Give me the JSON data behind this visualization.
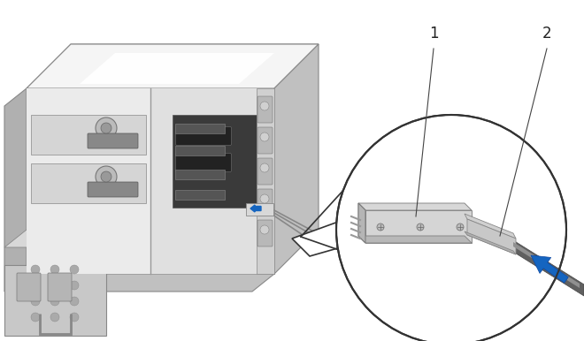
{
  "background_color": "#ffffff",
  "figure_width": 6.6,
  "figure_height": 3.86,
  "dpi": 100,
  "label1_text": "1",
  "label2_text": "2",
  "blue_arrow_color": "#1565c0",
  "line_color": "#333333",
  "chassis_light": "#f0f0f0",
  "chassis_mid": "#d8d8d8",
  "chassis_dark": "#909090",
  "chassis_darker": "#707070"
}
